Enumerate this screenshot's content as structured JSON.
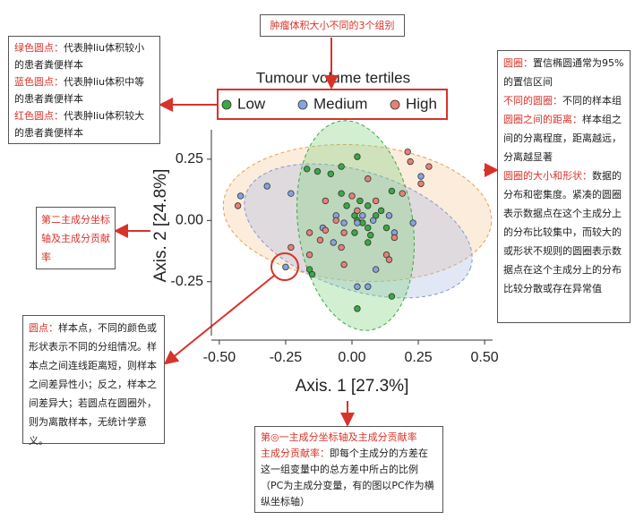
{
  "chart_data": {
    "type": "scatter",
    "legend_title": "Tumour volume tertiles",
    "xlabel": "Axis. 1 [27.3%]",
    "ylabel": "Axis. 2 [24.8%]",
    "xlim": [
      -0.53,
      0.53
    ],
    "ylim": [
      -0.47,
      0.37
    ],
    "xticks": [
      {
        "value": -0.5,
        "label": "-0.50"
      },
      {
        "value": -0.25,
        "label": "-0.25"
      },
      {
        "value": 0,
        "label": "0.00"
      },
      {
        "value": 0.25,
        "label": "0.25"
      },
      {
        "value": 0.5,
        "label": "0.50"
      }
    ],
    "yticks": [
      {
        "value": -0.25,
        "label": "-0.25"
      },
      {
        "value": 0,
        "label": "0.00"
      },
      {
        "value": 0.25,
        "label": "0.25"
      }
    ],
    "series": [
      {
        "name": "Low",
        "color": "#3aa845",
        "x": [
          -0.17,
          -0.13,
          -0.08,
          -0.04,
          0.02,
          -0.16,
          -0.15,
          -0.04,
          -0.02,
          0.01,
          0.02,
          0.04,
          0.06,
          0.07,
          0.09,
          0.11,
          0.06,
          0.03,
          0.01,
          0.15,
          0.15,
          0.02,
          0.13,
          0.06
        ],
        "values": [
          0.21,
          0.2,
          0.19,
          0.22,
          0.26,
          -0.2,
          -0.22,
          0.11,
          0.06,
          0.02,
          0.0,
          -0.01,
          -0.03,
          -0.06,
          0.02,
          0.04,
          0.06,
          0.08,
          -0.05,
          0.12,
          -0.31,
          -0.36,
          -0.03,
          -0.09
        ]
      },
      {
        "name": "Medium",
        "color": "#86a3dd",
        "x": [
          -0.42,
          -0.32,
          -0.23,
          -0.25,
          -0.11,
          -0.06,
          -0.03,
          0.04,
          0.08,
          0.14,
          0.16,
          0.09,
          0.02,
          0.06,
          0.23,
          0.26,
          0.02,
          -0.07
        ],
        "values": [
          0.1,
          0.14,
          0.11,
          -0.19,
          -0.03,
          0.02,
          -0.01,
          0.02,
          0.0,
          0.02,
          -0.05,
          -0.2,
          -0.27,
          -0.27,
          -0.01,
          0.18,
          -0.01,
          -0.09
        ]
      },
      {
        "name": "High",
        "color": "#e58178",
        "x": [
          -0.43,
          -0.23,
          -0.16,
          -0.16,
          -0.12,
          -0.1,
          -0.06,
          -0.04,
          -0.03,
          -0.03,
          -0.1,
          0.02,
          0.09,
          0.13,
          0.14,
          0.16,
          0.19,
          0.21,
          0.22,
          0.29,
          0.26,
          0.0,
          0.06
        ],
        "values": [
          0.06,
          -0.11,
          -0.14,
          -0.05,
          -0.08,
          -0.04,
          0.0,
          -0.11,
          -0.18,
          -0.05,
          0.08,
          0.04,
          0.08,
          -0.14,
          -0.16,
          -0.07,
          0.11,
          0.28,
          0.24,
          0.22,
          0.15,
          0.1,
          0.17
        ]
      }
    ],
    "annotations": {
      "legend_note": "肿瘤体积大小不同的3个组别",
      "groups": [
        {
          "label": "绿色圆点：",
          "text": "代表肿liu体积较小的患者粪便样本"
        },
        {
          "label": "蓝色圆点：",
          "text": "代表肿liu体积中等的患者粪便样本"
        },
        {
          "label": "红色圆点：",
          "text": "代表肿liu体积较大的患者粪便样本"
        }
      ],
      "ellipse_notes": [
        {
          "label": "圆圈：",
          "text": "置信椭圆通常为95%的置信区间"
        },
        {
          "label": "不同的圆圈：",
          "text": "不同的样本组"
        },
        {
          "label": "圆圈之间的距离：",
          "text": "样本组之间的分离程度，距离越远，分离越显著"
        },
        {
          "label": "圆圈的大小和形状：",
          "text": "数据的分布和密集度。紧凑的圆圈表示数据点在这个主成分上的分布比较集中，而较大的或形状不规则的圆圈表示数据点在这个主成分上的分布比较分散或存在异常值"
        }
      ],
      "y_axis_note": "第二主成分坐标轴及主成分贡献率",
      "point_note": {
        "label": "圆点：",
        "text": "样本点，不同的颜色或形状表示不同的分组情况。样本点之间连线距离短，则样本之间差异性小；反之，样本之间差异大；若圆点在圆圈外，则为离散样本，无统计学意义。"
      },
      "x_axis_note": {
        "title": "第◎一主成分坐标轴及主成分贡献率",
        "label": "主成分贡献率：",
        "text": "即每个主成分的方差在这一组变量中的总方差中所占的比例（PC为主成分变量，有的图以PC作为横纵坐标轴）"
      }
    }
  }
}
